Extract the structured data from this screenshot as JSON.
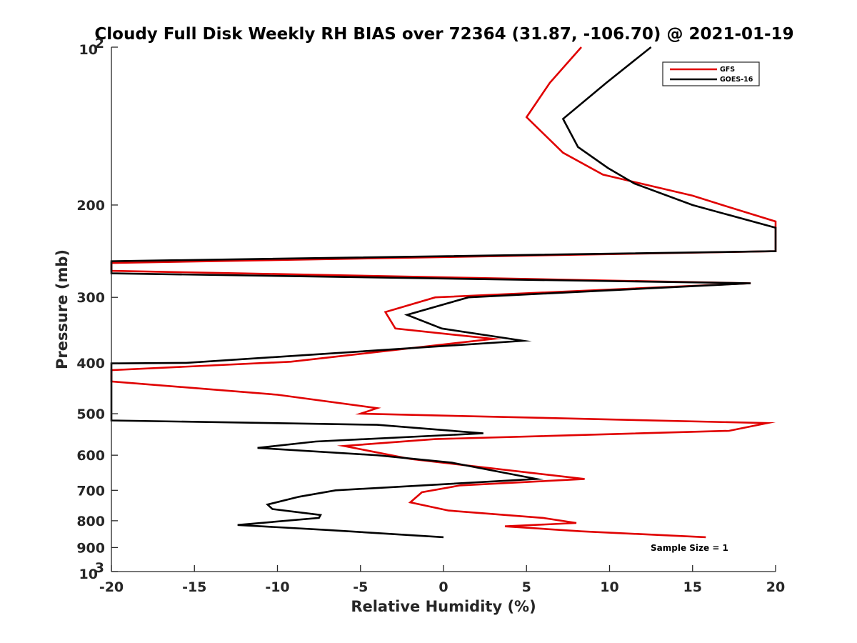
{
  "chart_data": {
    "type": "line",
    "title": "Cloudy Full Disk Weekly RH BIAS over 72364 (31.87, -106.70) @ 2021-01-19",
    "xlabel": "Relative Humidity (%)",
    "ylabel": "Pressure (mb)",
    "xlim": [
      -20,
      20
    ],
    "ylim": [
      100,
      1000
    ],
    "y_scale": "log",
    "y_reversed": true,
    "grid": false,
    "legend_position": "top-right",
    "x_ticks": [
      -20,
      -15,
      -10,
      -5,
      0,
      5,
      10,
      15,
      20
    ],
    "x_tick_labels": [
      "-20",
      "-15",
      "-10",
      "-5",
      "0",
      "5",
      "10",
      "15",
      "20"
    ],
    "y_ticks": [
      100,
      200,
      300,
      400,
      500,
      600,
      700,
      800,
      900,
      1000
    ],
    "y_tick_labels": [
      {
        "base": "10",
        "exp": "2"
      },
      {
        "base": "200",
        "exp": ""
      },
      {
        "base": "300",
        "exp": ""
      },
      {
        "base": "400",
        "exp": ""
      },
      {
        "base": "500",
        "exp": ""
      },
      {
        "base": "600",
        "exp": ""
      },
      {
        "base": "700",
        "exp": ""
      },
      {
        "base": "800",
        "exp": ""
      },
      {
        "base": "900",
        "exp": ""
      },
      {
        "base": "10",
        "exp": "3"
      }
    ],
    "annotation": "Sample Size = 1",
    "series": [
      {
        "name": "GFS",
        "color": "#e00000",
        "points": [
          [
            8.3,
            100
          ],
          [
            6.4,
            117
          ],
          [
            5.0,
            136
          ],
          [
            7.2,
            159
          ],
          [
            9.6,
            175
          ],
          [
            15.0,
            192
          ],
          [
            17.0,
            201
          ],
          [
            20.0,
            215
          ],
          [
            20.0,
            245
          ],
          [
            -20.0,
            258
          ],
          [
            -20.0,
            267
          ],
          [
            18.5,
            282
          ],
          [
            -0.5,
            300
          ],
          [
            -3.5,
            320
          ],
          [
            -2.9,
            344
          ],
          [
            3.0,
            360
          ],
          [
            -9.2,
            398
          ],
          [
            -20.0,
            413
          ],
          [
            -20.0,
            434
          ],
          [
            -10.0,
            460
          ],
          [
            -4.0,
            488
          ],
          [
            -5.0,
            500
          ],
          [
            19.5,
            521
          ],
          [
            17.2,
            539
          ],
          [
            -0.5,
            559
          ],
          [
            -6.0,
            576
          ],
          [
            -2.0,
            610
          ],
          [
            8.5,
            666
          ],
          [
            1.0,
            685
          ],
          [
            -1.3,
            706
          ],
          [
            -2.0,
            738
          ],
          [
            0.3,
            765
          ],
          [
            6.0,
            790
          ],
          [
            8.0,
            808
          ],
          [
            3.7,
            820
          ],
          [
            8.3,
            838
          ],
          [
            15.8,
            860
          ]
        ]
      },
      {
        "name": "GOES-16",
        "color": "#000000",
        "points": [
          [
            12.5,
            100
          ],
          [
            9.8,
            117
          ],
          [
            7.2,
            137
          ],
          [
            8.1,
            155
          ],
          [
            9.9,
            170
          ],
          [
            11.5,
            182
          ],
          [
            15.0,
            200
          ],
          [
            20.0,
            221
          ],
          [
            20.0,
            245
          ],
          [
            -20.0,
            256
          ],
          [
            -20.0,
            270
          ],
          [
            18.5,
            282
          ],
          [
            1.5,
            300
          ],
          [
            -2.2,
            324
          ],
          [
            -0.1,
            344
          ],
          [
            4.8,
            363
          ],
          [
            -15.5,
            400
          ],
          [
            -20.0,
            401
          ],
          [
            -20.0,
            515
          ],
          [
            -4.0,
            525
          ],
          [
            2.4,
            545
          ],
          [
            -7.7,
            565
          ],
          [
            -11.2,
            581
          ],
          [
            -4.0,
            600
          ],
          [
            0.5,
            620
          ],
          [
            5.6,
            666
          ],
          [
            -6.5,
            700
          ],
          [
            -8.7,
            720
          ],
          [
            -10.6,
            745
          ],
          [
            -10.3,
            760
          ],
          [
            -7.4,
            780
          ],
          [
            -7.5,
            790
          ],
          [
            -12.4,
            815
          ],
          [
            -7.0,
            833
          ],
          [
            0.0,
            860
          ]
        ]
      }
    ]
  }
}
